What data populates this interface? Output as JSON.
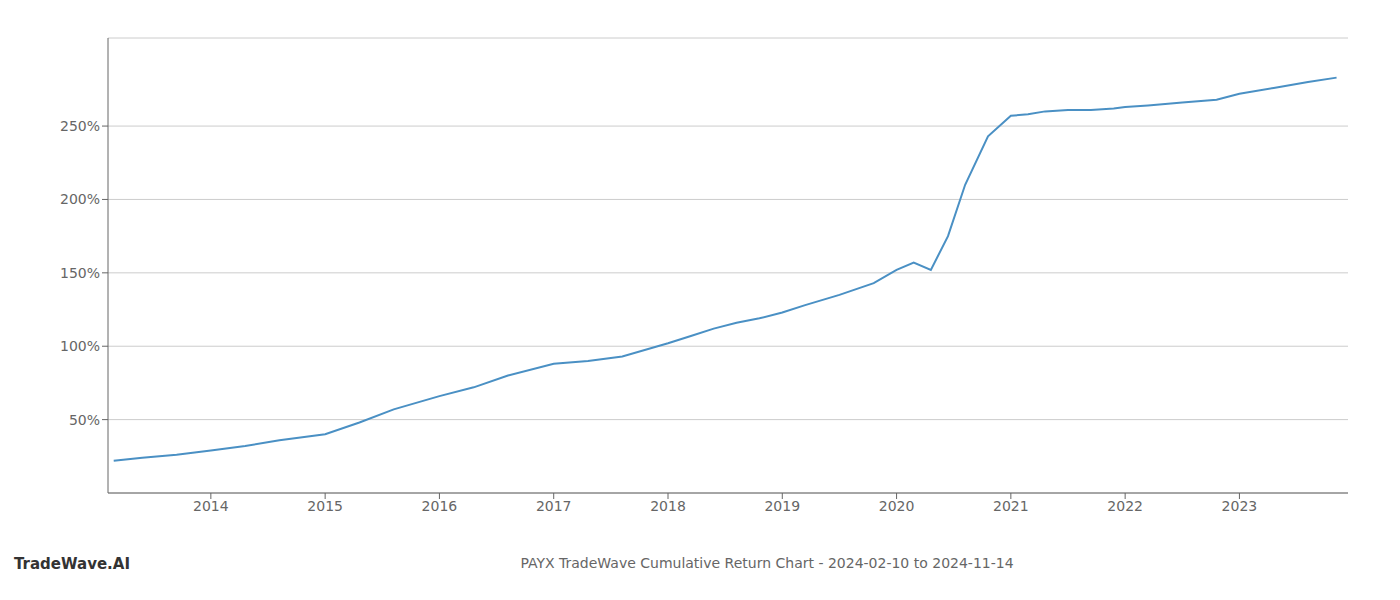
{
  "chart_data": {
    "type": "line",
    "title": "PAYX TradeWave Cumulative Return Chart - 2024-02-10 to 2024-11-14",
    "annotations": [
      "TradeWave.AI"
    ],
    "color": "#4a90c4",
    "x": [
      2013.15,
      2013.4,
      2013.7,
      2014.0,
      2014.3,
      2014.6,
      2015.0,
      2015.3,
      2015.6,
      2016.0,
      2016.3,
      2016.6,
      2017.0,
      2017.3,
      2017.6,
      2018.0,
      2018.2,
      2018.4,
      2018.6,
      2018.8,
      2019.0,
      2019.2,
      2019.5,
      2019.8,
      2020.0,
      2020.15,
      2020.3,
      2020.45,
      2020.6,
      2020.8,
      2021.0,
      2021.15,
      2021.3,
      2021.5,
      2021.7,
      2021.9,
      2022.0,
      2022.2,
      2022.5,
      2022.8,
      2023.0,
      2023.3,
      2023.6,
      2023.85
    ],
    "values": [
      22,
      24,
      26,
      29,
      32,
      36,
      40,
      48,
      57,
      66,
      72,
      80,
      88,
      90,
      93,
      102,
      107,
      112,
      116,
      119,
      123,
      128,
      135,
      143,
      152,
      157,
      152,
      175,
      210,
      243,
      257,
      258,
      260,
      261,
      261,
      262,
      263,
      264,
      266,
      268,
      272,
      276,
      280,
      283
    ],
    "xlim": [
      2013.1,
      2023.95
    ],
    "ylim": [
      0,
      310
    ],
    "xticks": [
      2014,
      2015,
      2016,
      2017,
      2018,
      2019,
      2020,
      2021,
      2022,
      2023
    ],
    "yticks": [
      {
        "value": 50,
        "label": "50%"
      },
      {
        "value": 100,
        "label": "100%"
      },
      {
        "value": 150,
        "label": "150%"
      },
      {
        "value": 200,
        "label": "200%"
      },
      {
        "value": 250,
        "label": "250%"
      }
    ],
    "grid": "y"
  }
}
